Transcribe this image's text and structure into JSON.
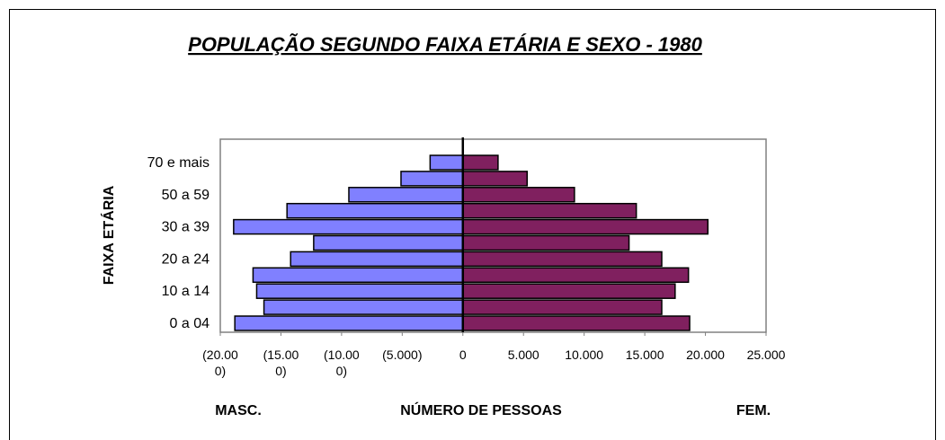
{
  "chart_data": {
    "type": "pyramid",
    "title": "POPULAÇÃO SEGUNDO FAIXA ETÁRIA E SEXO - 1980",
    "y_label": "FAIXA ETÁRIA",
    "x_label": "NÚMERO DE PESSOAS",
    "left_label": "MASC.",
    "right_label": "FEM.",
    "categories": [
      "0 a 04",
      null,
      "10 a 14",
      null,
      "20 a 24",
      null,
      "30 a 39",
      null,
      "50 a 59",
      null,
      "70 e mais"
    ],
    "series": [
      {
        "name": "MASC.",
        "color": "#8080ff",
        "values": [
          -18800,
          -16400,
          -17000,
          -17300,
          -14200,
          -12300,
          -18900,
          -14500,
          -9400,
          -5100,
          -2700
        ]
      },
      {
        "name": "FEM.",
        "color": "#80205f",
        "values": [
          18700,
          16400,
          17500,
          18600,
          16400,
          13700,
          20200,
          14300,
          9200,
          5300,
          2900
        ]
      }
    ],
    "xlim": [
      -20000,
      25000
    ],
    "xticks": [
      {
        "value": -20000,
        "label": "(20.000)"
      },
      {
        "value": -15000,
        "label": "(15.000)"
      },
      {
        "value": -10000,
        "label": "(10.000)"
      },
      {
        "value": -5000,
        "label": "(5.000)"
      },
      0,
      {
        "value": 5000,
        "label": "5.000"
      },
      {
        "value": 10000,
        "label": "10.000"
      },
      {
        "value": 15000,
        "label": "15.000"
      },
      {
        "value": 20000,
        "label": "20.000"
      },
      {
        "value": 25000,
        "label": "25.000"
      }
    ]
  }
}
